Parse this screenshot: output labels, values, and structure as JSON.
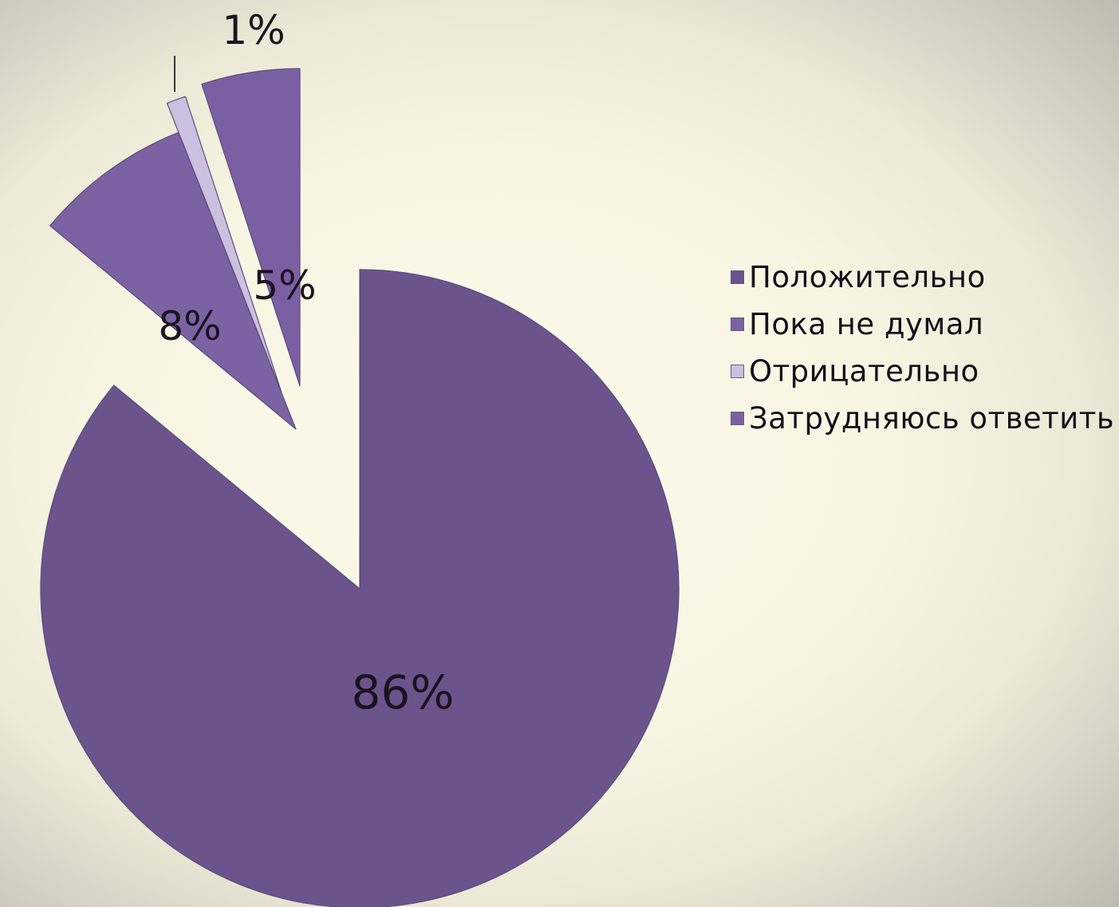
{
  "chart_data": {
    "type": "pie",
    "legend_position": "right",
    "slices": [
      {
        "label": "Положительно",
        "value": 86,
        "value_label": "86%",
        "color": "#6b548c"
      },
      {
        "label": "Пока не думал",
        "value": 8,
        "value_label": "8%",
        "color": "#7b62a3"
      },
      {
        "label": "Отрицательно",
        "value": 1,
        "value_label": "1%",
        "color": "#ccc0e0"
      },
      {
        "label": "Затрудняюсь ответить",
        "value": 5,
        "value_label": "5%",
        "color": "#7a60a2"
      }
    ]
  }
}
